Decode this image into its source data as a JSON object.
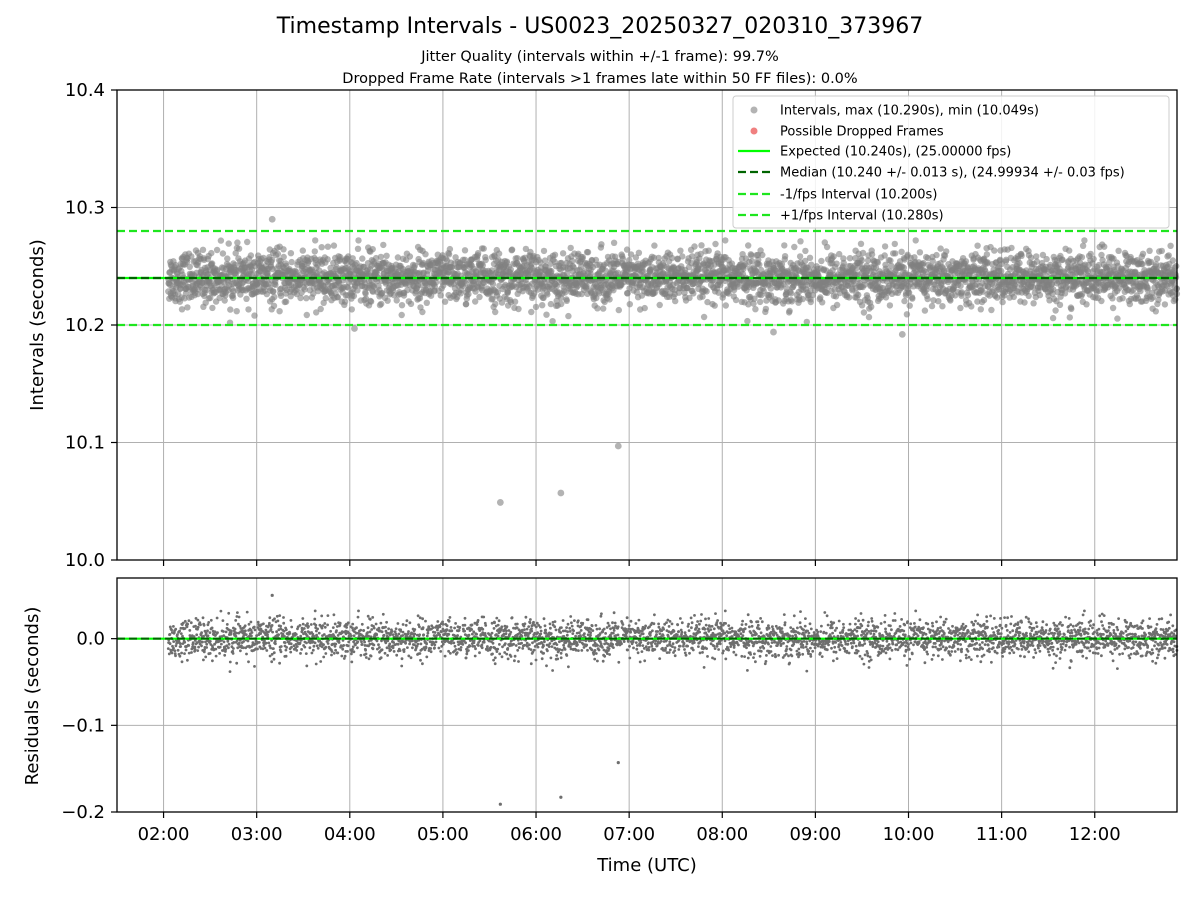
{
  "chart_data": [
    {
      "type": "scatter",
      "title": "Timestamp Intervals - US0023_20250327_020310_373967",
      "subtitle_1": "Jitter Quality (intervals within +/-1 frame): 99.7%",
      "subtitle_2": "Dropped Frame Rate (intervals >1 frames late within 50 FF files): 0.0%",
      "xlabel": "",
      "ylabel": "Intervals (seconds)",
      "ylim": [
        10.0,
        10.4
      ],
      "yticks": [
        "10.0",
        "10.1",
        "10.2",
        "10.3",
        "10.4"
      ],
      "xlim": [
        "01:30",
        "12:53"
      ],
      "xticks": [
        "02:00",
        "03:00",
        "04:00",
        "05:00",
        "06:00",
        "07:00",
        "08:00",
        "09:00",
        "10:00",
        "11:00",
        "12:00"
      ],
      "grid": true,
      "legend_position": "top-right",
      "legend": [
        "Intervals, max (10.290s), min (10.049s)",
        "Possible Dropped Frames",
        "Expected (10.240s), (25.00000 fps)",
        "Median (10.240 +/- 0.013 s), (24.99934 +/- 0.03 fps)",
        "-1/fps Interval (10.200s)",
        "+1/fps Interval (10.280s)"
      ],
      "reference_lines": {
        "expected": 10.24,
        "median": 10.24,
        "minus_1fps": 10.2,
        "plus_1fps": 10.28
      },
      "series": [
        {
          "name": "Intervals, max (10.290s), min (10.049s)",
          "time_range": [
            "02:03",
            "12:53"
          ],
          "center": 10.24,
          "spread": 0.013,
          "count": 3800
        },
        {
          "name": "Possible Dropped Frames",
          "values": []
        }
      ],
      "notable_points": [
        {
          "x": "03:10",
          "y": 10.29
        },
        {
          "x": "05:37",
          "y": 10.049
        },
        {
          "x": "06:16",
          "y": 10.057
        },
        {
          "x": "06:53",
          "y": 10.097
        },
        {
          "x": "08:33",
          "y": 10.194
        },
        {
          "x": "09:56",
          "y": 10.192
        },
        {
          "x": "04:03",
          "y": 10.197
        }
      ],
      "colors": {
        "points": "#808080",
        "dropped": "#f08080",
        "expected": "#00ff00",
        "median": "#006400",
        "interval": "#1ee61e"
      }
    },
    {
      "type": "scatter",
      "xlabel": "Time (UTC)",
      "ylabel": "Residuals (seconds)",
      "ylim": [
        -0.2,
        0.07
      ],
      "yticks": [
        "0.0",
        "−0.1",
        "−0.2"
      ],
      "xticks": [
        "02:00",
        "03:00",
        "04:00",
        "05:00",
        "06:00",
        "07:00",
        "08:00",
        "09:00",
        "10:00",
        "11:00",
        "12:00"
      ],
      "grid": true,
      "reference_line": 0.0,
      "notable_points": [
        {
          "x": "03:10",
          "y": 0.05
        },
        {
          "x": "05:37",
          "y": -0.191
        },
        {
          "x": "06:16",
          "y": -0.183
        },
        {
          "x": "06:53",
          "y": -0.143
        }
      ]
    }
  ]
}
